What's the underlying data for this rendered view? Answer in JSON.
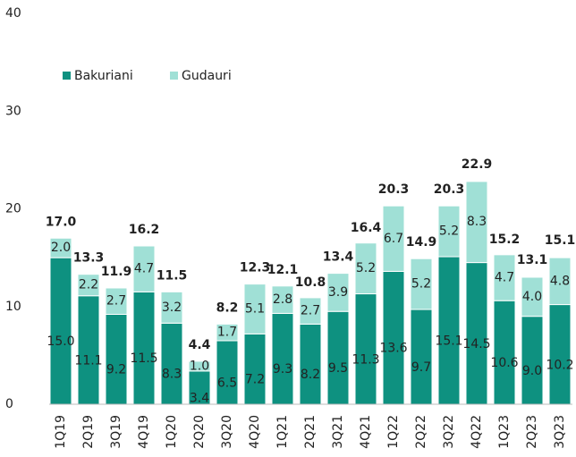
{
  "chart_data": {
    "type": "stacked_bar",
    "categories": [
      "1Q19",
      "2Q19",
      "3Q19",
      "4Q19",
      "1Q20",
      "2Q20",
      "3Q20",
      "4Q20",
      "1Q21",
      "2Q21",
      "3Q21",
      "4Q21",
      "1Q22",
      "2Q22",
      "3Q22",
      "4Q22",
      "1Q23",
      "2Q23",
      "3Q23"
    ],
    "series": [
      {
        "name": "Bakuriani",
        "color": "#0e9180",
        "values": [
          15.0,
          11.1,
          9.2,
          11.5,
          8.3,
          3.4,
          6.5,
          7.2,
          9.3,
          8.2,
          9.5,
          11.3,
          13.6,
          9.7,
          15.1,
          14.5,
          10.6,
          9.0,
          10.2
        ],
        "value_labels": [
          "15.0",
          "11.1",
          "9.2",
          "11.5",
          "8.3",
          "3.4",
          "6.5",
          "7.2",
          "9.3",
          "8.2",
          "9.5",
          "11.3",
          "13.6",
          "9.7",
          "15.1",
          "14.5",
          "10.6",
          "9.0",
          "10.2"
        ]
      },
      {
        "name": "Gudauri",
        "color": "#a0e0d6",
        "values": [
          2.0,
          2.2,
          2.7,
          4.7,
          3.2,
          1.0,
          1.7,
          5.1,
          2.8,
          2.7,
          3.9,
          5.2,
          6.7,
          5.2,
          5.2,
          8.3,
          4.7,
          4.0,
          4.8
        ],
        "value_labels": [
          "2.0",
          "2.2",
          "2.7",
          "4.7",
          "3.2",
          "1.0",
          "1.7",
          "5.1",
          "2.8",
          "2.7",
          "3.9",
          "5.2",
          "6.7",
          "5.2",
          "5.2",
          "8.3",
          "4.7",
          "4.0",
          "4.8"
        ]
      }
    ],
    "totals": [
      17.0,
      13.3,
      11.9,
      16.2,
      11.5,
      4.4,
      8.2,
      12.3,
      12.1,
      10.8,
      13.4,
      16.4,
      20.3,
      14.9,
      20.3,
      22.9,
      15.2,
      13.1,
      15.1
    ],
    "total_labels": [
      "17.0",
      "13.3",
      "11.9",
      "16.2",
      "11.5",
      "4.4",
      "8.2",
      "12.3",
      "12.1",
      "10.8",
      "13.4",
      "16.4",
      "20.3",
      "14.9",
      "20.3",
      "22.9",
      "15.2",
      "13.1",
      "15.1"
    ],
    "ylim": [
      0,
      40
    ],
    "yticks": [
      0,
      10,
      20,
      30,
      40
    ],
    "legend": "top-left"
  }
}
